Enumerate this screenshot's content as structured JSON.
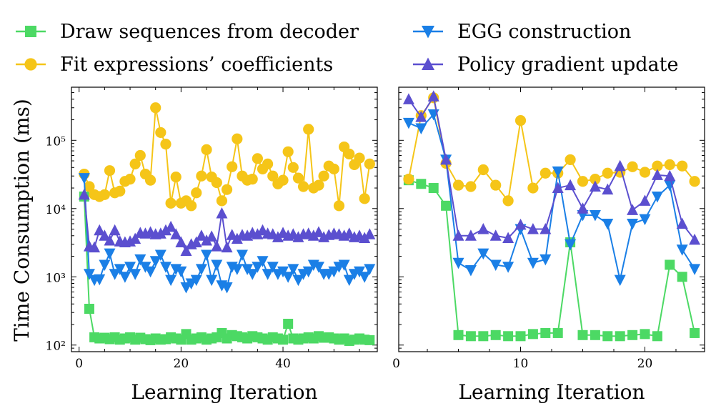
{
  "legend": [
    {
      "label": "Draw sequences from decoder",
      "color": "#4cd964",
      "marker": "square"
    },
    {
      "label": "Fit expressions’ coefficients",
      "color": "#f5c518",
      "marker": "circle"
    },
    {
      "label": "EGG construction",
      "color": "#1a7fe6",
      "marker": "triangle-down"
    },
    {
      "label": "Policy gradient update",
      "color": "#5b4fcf",
      "marker": "triangle-up"
    }
  ],
  "chart_data": [
    {
      "type": "line",
      "xlabel": "Learning Iteration",
      "ylabel": "Time Consumption (ms)",
      "yscale": "log",
      "xlim": [
        -1.5,
        58.5
      ],
      "ylim": [
        80,
        600000
      ],
      "xticks": [
        0,
        20,
        40
      ],
      "yticks": [
        100,
        1000,
        10000,
        100000
      ],
      "ytick_labels": [
        "10²",
        "10³",
        "10⁴",
        "10⁵"
      ],
      "x": [
        1,
        2,
        3,
        4,
        5,
        6,
        7,
        8,
        9,
        10,
        11,
        12,
        13,
        14,
        15,
        16,
        17,
        18,
        19,
        20,
        21,
        22,
        23,
        24,
        25,
        26,
        27,
        28,
        29,
        30,
        31,
        32,
        33,
        34,
        35,
        36,
        37,
        38,
        39,
        40,
        41,
        42,
        43,
        44,
        45,
        46,
        47,
        48,
        49,
        50,
        51,
        52,
        53,
        54,
        55,
        56,
        57
      ],
      "series": [
        {
          "name": "Draw sequences from decoder",
          "values": [
            15000,
            340,
            130,
            125,
            128,
            122,
            130,
            120,
            125,
            130,
            120,
            128,
            122,
            118,
            125,
            120,
            122,
            130,
            125,
            120,
            145,
            120,
            125,
            130,
            120,
            125,
            130,
            150,
            125,
            140,
            135,
            130,
            125,
            135,
            130,
            125,
            120,
            130,
            125,
            120,
            205,
            125,
            120,
            125,
            130,
            125,
            135,
            128,
            130,
            125,
            120,
            125,
            115,
            120,
            125,
            120,
            118
          ]
        },
        {
          "name": "Fit expressions’ coefficients",
          "values": [
            32000,
            21000,
            16000,
            15000,
            16000,
            36000,
            17000,
            18000,
            25000,
            27000,
            45000,
            60000,
            32000,
            26000,
            300000,
            130000,
            88000,
            12000,
            29000,
            12000,
            13000,
            11000,
            17000,
            30000,
            73000,
            29000,
            24000,
            13000,
            19000,
            41000,
            105000,
            30000,
            26000,
            27000,
            54000,
            38000,
            45000,
            30000,
            23000,
            26000,
            68000,
            40000,
            28000,
            21000,
            145000,
            20000,
            22000,
            30000,
            42000,
            38000,
            11000,
            80000,
            63000,
            44000,
            55000,
            14000,
            45000
          ]
        },
        {
          "name": "EGG construction",
          "values": [
            28000,
            1100,
            900,
            920,
            1500,
            2200,
            1100,
            1300,
            1000,
            1400,
            1100,
            1800,
            1400,
            1200,
            1700,
            2100,
            1400,
            900,
            1300,
            1200,
            700,
            800,
            900,
            1300,
            2100,
            900,
            1500,
            750,
            700,
            1400,
            1300,
            2100,
            1300,
            1100,
            1400,
            1700,
            1100,
            1400,
            1100,
            1200,
            1000,
            1300,
            900,
            1100,
            1200,
            1500,
            1400,
            1100,
            1100,
            1200,
            1400,
            1500,
            900,
            1100,
            1200,
            1000,
            1300
          ]
        },
        {
          "name": "Policy gradient update",
          "values": [
            16000,
            2800,
            2700,
            4800,
            4000,
            3400,
            4800,
            3300,
            3200,
            3300,
            3600,
            4400,
            4300,
            4500,
            4200,
            4300,
            4800,
            5400,
            4200,
            3200,
            2400,
            3000,
            3200,
            4000,
            3400,
            3900,
            2800,
            8500,
            2700,
            4100,
            3600,
            4100,
            4000,
            4400,
            4200,
            4800,
            4300,
            4200,
            3800,
            4400,
            4000,
            4200,
            3800,
            4200,
            4300,
            4000,
            4500,
            3800,
            4100,
            4300,
            4200,
            4000,
            4300,
            3800,
            4000,
            3700,
            4200
          ]
        }
      ]
    },
    {
      "type": "line",
      "xlabel": "Learning Iteration",
      "ylabel": "",
      "yscale": "log",
      "xlim": [
        0.2,
        24.8
      ],
      "ylim": [
        80,
        600000
      ],
      "xticks": [
        0,
        10,
        20
      ],
      "yticks": [
        100,
        1000,
        10000,
        100000
      ],
      "x": [
        1,
        2,
        3,
        4,
        5,
        6,
        7,
        8,
        9,
        10,
        11,
        12,
        13,
        14,
        15,
        16,
        17,
        18,
        19,
        20,
        21,
        22,
        23,
        24
      ],
      "series": [
        {
          "name": "Draw sequences from decoder",
          "values": [
            26000,
            23000,
            20000,
            11000,
            140,
            135,
            135,
            140,
            135,
            135,
            145,
            150,
            150,
            3200,
            140,
            140,
            135,
            135,
            140,
            145,
            135,
            1500,
            1000,
            150
          ]
        },
        {
          "name": "Fit expressions’ coefficients",
          "values": [
            27000,
            230000,
            420000,
            46000,
            22000,
            21000,
            37000,
            22000,
            13000,
            195000,
            20000,
            33000,
            33000,
            52000,
            25000,
            27000,
            33000,
            34000,
            41000,
            34000,
            42000,
            44000,
            42000,
            25000
          ]
        },
        {
          "name": "EGG construction",
          "values": [
            180000,
            150000,
            240000,
            52000,
            1600,
            1250,
            2200,
            1500,
            1400,
            5000,
            1600,
            1800,
            35000,
            3000,
            8000,
            8000,
            6000,
            900,
            6000,
            7000,
            15000,
            22000,
            2500,
            1300
          ]
        },
        {
          "name": "Policy gradient update",
          "values": [
            400000,
            220000,
            440000,
            52000,
            4000,
            4000,
            5000,
            4000,
            3700,
            5800,
            5000,
            5000,
            20000,
            22000,
            10000,
            21000,
            19000,
            42000,
            9500,
            13000,
            31000,
            30000,
            6000,
            3500
          ]
        }
      ]
    }
  ]
}
